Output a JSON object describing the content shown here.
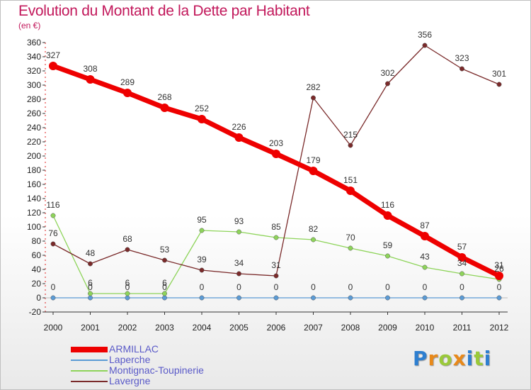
{
  "header": {
    "title": "Evolution du Montant de la Dette par Habitant",
    "subtitle": "(en €)"
  },
  "logo": {
    "letters": [
      {
        "ch": "P",
        "color": "#2e7fd0"
      },
      {
        "ch": "r",
        "color": "#e8891a"
      },
      {
        "ch": "o",
        "color": "#9ac93a"
      },
      {
        "ch": "x",
        "color": "#e8891a"
      },
      {
        "ch": "i",
        "color": "#2e7fd0"
      },
      {
        "ch": "t",
        "color": "#9ac93a"
      },
      {
        "ch": "i",
        "color": "#2e7fd0"
      }
    ]
  },
  "chart_data": {
    "type": "line",
    "title": "Evolution du Montant de la Dette par Habitant",
    "subtitle": "(en €)",
    "x": [
      2000,
      2001,
      2002,
      2003,
      2004,
      2005,
      2006,
      2007,
      2008,
      2009,
      2010,
      2011,
      2012
    ],
    "ylim": [
      -20,
      360
    ],
    "yticks": [
      -20,
      0,
      20,
      40,
      60,
      80,
      100,
      120,
      140,
      160,
      180,
      200,
      220,
      240,
      260,
      280,
      300,
      320,
      340,
      360
    ],
    "grid": false,
    "legend_position": "bottom-left",
    "series": [
      {
        "name": "ARMILLAC",
        "color": "#ee0000",
        "values": [
          327,
          308,
          289,
          268,
          252,
          226,
          203,
          179,
          151,
          116,
          87,
          57,
          31
        ]
      },
      {
        "name": "Laperche",
        "color": "#5b9bd5",
        "values": [
          0,
          0,
          0,
          0,
          0,
          0,
          0,
          0,
          0,
          0,
          0,
          0,
          0
        ]
      },
      {
        "name": "Montignac-Toupinerie",
        "color": "#8ed45a",
        "values": [
          116,
          6,
          6,
          6,
          95,
          93,
          85,
          82,
          70,
          59,
          43,
          34,
          26
        ]
      },
      {
        "name": "Lavergne",
        "color": "#7a2a2a",
        "values": [
          76,
          48,
          68,
          53,
          39,
          34,
          31,
          282,
          215,
          302,
          356,
          323,
          301
        ]
      }
    ]
  }
}
